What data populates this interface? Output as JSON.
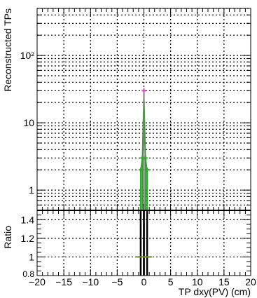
{
  "chart_data": [
    {
      "panel": "main",
      "type": "histogram",
      "xlabel": "",
      "ylabel": "Reconstructed TPs",
      "xlim": [
        -20,
        20
      ],
      "ylim": [
        0.5,
        500
      ],
      "yscale": "log",
      "grid": true,
      "ytick_labels": [
        "1",
        "10",
        "10²"
      ],
      "series": [
        {
          "color": "#22aa22",
          "bins": [
            {
              "x": -0.6,
              "y": 2
            },
            {
              "x": -0.3,
              "y": 3
            },
            {
              "x": 0.0,
              "y": 30
            },
            {
              "x": 0.3,
              "y": 3
            },
            {
              "x": 0.6,
              "y": 2
            }
          ]
        },
        {
          "color": "#dd44cc",
          "bins": [
            {
              "x": 0.0,
              "y": 30
            }
          ]
        }
      ]
    },
    {
      "panel": "ratio",
      "type": "histogram",
      "xlabel": "TP dxy(PV) (cm)",
      "ylabel": "Ratio",
      "xlim": [
        -20,
        20
      ],
      "ylim": [
        0.8,
        1.5
      ],
      "grid": true,
      "xtick_labels": [
        "−20",
        "−15",
        "−10",
        "−5",
        "0",
        "5",
        "10",
        "15",
        "20"
      ],
      "ytick_labels": [
        "0.8",
        "1",
        "1.2",
        "1.4"
      ],
      "series": [
        {
          "color": "#22aa22",
          "points": [
            {
              "x": -0.6,
              "y": 1
            },
            {
              "x": 0.0,
              "y": 1
            },
            {
              "x": 0.6,
              "y": 1
            }
          ]
        },
        {
          "color": "#ddbb00",
          "points": [
            {
              "x": 0.0,
              "y": 1
            }
          ]
        }
      ]
    }
  ]
}
